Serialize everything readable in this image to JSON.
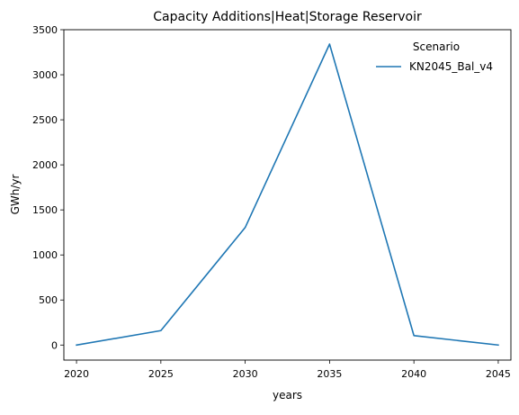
{
  "chart_data": {
    "type": "line",
    "title": "Capacity Additions|Heat|Storage Reservoir",
    "xlabel": "years",
    "ylabel": "GWh/yr",
    "x": [
      2020,
      2025,
      2030,
      2035,
      2040,
      2045
    ],
    "xticks": [
      "2020",
      "2025",
      "2030",
      "2035",
      "2040",
      "2045"
    ],
    "yticks": [
      "0",
      "500",
      "1000",
      "1500",
      "2000",
      "2500",
      "3000",
      "3500"
    ],
    "xlim": [
      2019.25,
      2045.75
    ],
    "ylim": [
      -167,
      3500
    ],
    "series": [
      {
        "name": "KN2045_Bal_v4",
        "color": "#1f77b4",
        "values": [
          0,
          160,
          1305,
          3340,
          105,
          0
        ]
      }
    ],
    "legend": {
      "title": "Scenario",
      "placement": "top-right"
    },
    "grid": false
  }
}
